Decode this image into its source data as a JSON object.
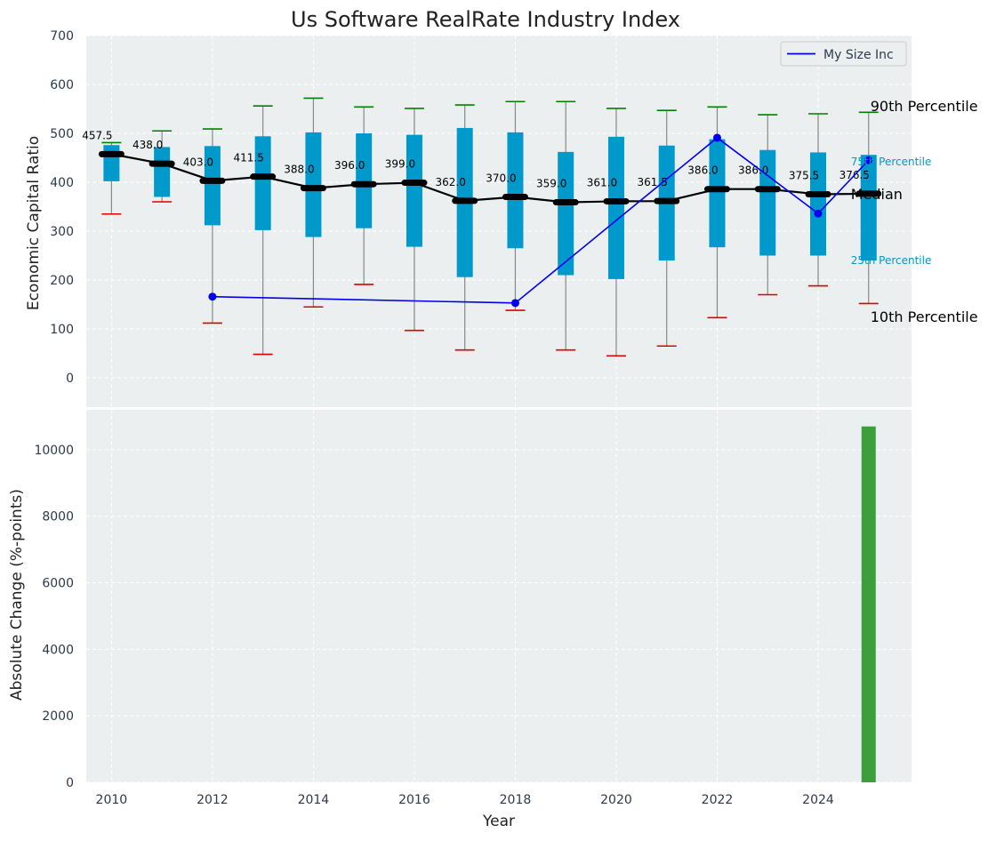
{
  "chart_data": [
    {
      "type": "box",
      "title": "Us Software RealRate Industry Index",
      "ylabel": "Economic Capital Ratio",
      "ylim": [
        -60,
        700
      ],
      "yticks": [
        0,
        100,
        200,
        300,
        400,
        500,
        600,
        700
      ],
      "grid": true,
      "legend_placement": "top-right",
      "colors": {
        "panel_bg": "#ebeff0",
        "box": "#0099cc",
        "whisker": "#888888",
        "p90_cap": "#008000",
        "p10_cap": "#dd0000",
        "median": "#000000",
        "company": "#0000ee",
        "text": "#2b3a4a"
      },
      "years": [
        2010,
        2011,
        2012,
        2013,
        2014,
        2015,
        2016,
        2017,
        2018,
        2019,
        2020,
        2021,
        2022,
        2023,
        2024,
        2025
      ],
      "p10": [
        335,
        360,
        112,
        48,
        145,
        191,
        97,
        57,
        138,
        57,
        45,
        65,
        123,
        170,
        188,
        152
      ],
      "p25": [
        402,
        370,
        312,
        302,
        288,
        306,
        268,
        206,
        265,
        210,
        202,
        240,
        267,
        250,
        250,
        240
      ],
      "median": [
        457.5,
        438.0,
        403.0,
        411.5,
        388.0,
        396.0,
        399.0,
        362.0,
        370.0,
        359.0,
        361.0,
        361.5,
        386.0,
        386.0,
        375.5,
        376.5
      ],
      "median_labels": [
        "457.5",
        "438.0",
        "403.0",
        "411.5",
        "388.0",
        "396.0",
        "399.0",
        "362.0",
        "370.0",
        "359.0",
        "361.0",
        "361.5",
        "386.0",
        "386.0",
        "375.5",
        "376.5"
      ],
      "p75": [
        476,
        472,
        474,
        494,
        502,
        500,
        497,
        511,
        502,
        462,
        493,
        475,
        488,
        466,
        461,
        456
      ],
      "p90": [
        481,
        505,
        509,
        556,
        572,
        554,
        551,
        558,
        565,
        565,
        551,
        547,
        554,
        538,
        540,
        543
      ],
      "company_series": {
        "name": "My Size Inc",
        "x": [
          2012,
          2018,
          2022,
          2024,
          2025
        ],
        "y": [
          166,
          153,
          491,
          336,
          445
        ]
      },
      "annotations": {
        "p90": "90th Percentile",
        "p75": "75th Percentile",
        "median": "Median",
        "p25": "25th Percentile",
        "p10": "10th Percentile"
      }
    },
    {
      "type": "bar",
      "xlabel": "Year",
      "ylabel": "Absolute Change (%-points)",
      "ylim": [
        0,
        11200
      ],
      "yticks": [
        0,
        2000,
        4000,
        6000,
        8000,
        10000
      ],
      "xticks": [
        2010,
        2012,
        2014,
        2016,
        2018,
        2020,
        2022,
        2024
      ],
      "x": [
        2025
      ],
      "values": [
        10700
      ],
      "bar_color": "#3c9e3c",
      "grid": true
    }
  ]
}
